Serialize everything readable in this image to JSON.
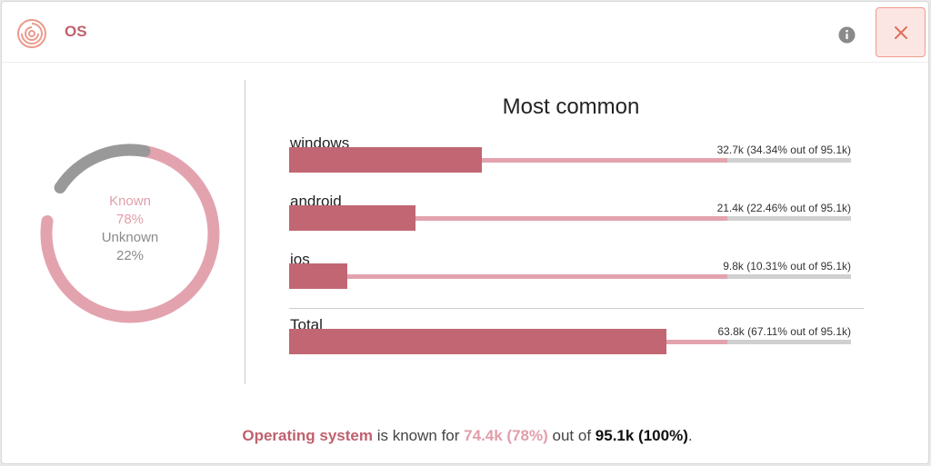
{
  "header": {
    "title": "OS",
    "icons": [
      "logo-icon",
      "info-icon",
      "close-icon"
    ]
  },
  "donut": {
    "known_label": "Known",
    "known_percent": "78%",
    "unknown_label": "Unknown",
    "unknown_percent": "22%",
    "known_fraction": 0.78,
    "colors": {
      "known": "#e3a3ae",
      "unknown": "#999999"
    }
  },
  "most_common": {
    "title": "Most common",
    "items": [
      {
        "name": "windows",
        "value_text": "32.7k (34.34% out of 95.1k)",
        "fraction": 0.3434
      },
      {
        "name": "android",
        "value_text": "21.4k (22.46% out of 95.1k)",
        "fraction": 0.2246
      },
      {
        "name": "ios",
        "value_text": "9.8k (10.31% out of 95.1k)",
        "fraction": 0.1031
      }
    ],
    "total": {
      "name": "Total",
      "value_text": "63.8k (67.11% out of 95.1k)",
      "fraction": 0.6711
    },
    "colors": {
      "bar": "#c26673",
      "track_known": "#e3a3ae",
      "track_rest": "#d0d0d0"
    }
  },
  "summary": {
    "field": "Operating system",
    "mid1": "is known for",
    "known": "74.4k (78%)",
    "mid2": "out of",
    "total": "95.1k (100%)",
    "end": "."
  }
}
